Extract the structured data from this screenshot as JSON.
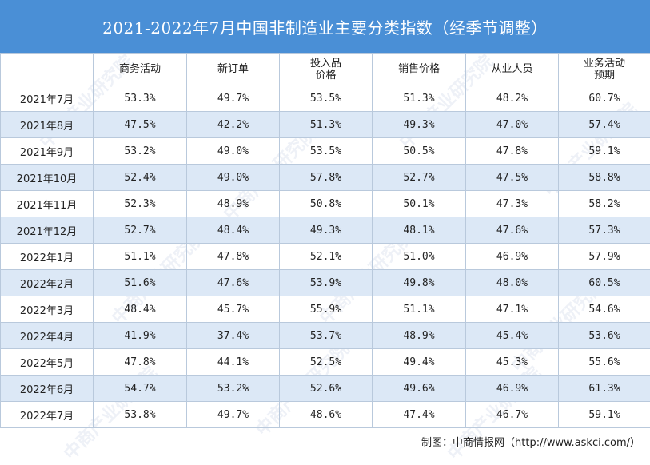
{
  "title": "2021-2022年7月中国非制造业主要分类指数（经季节调整）",
  "columns": [
    "",
    "商务活动",
    "新订单",
    "投入品\n价格",
    "销售价格",
    "从业人员",
    "业务活动\n预期"
  ],
  "rows": [
    [
      "2021年7月",
      "53.3%",
      "49.7%",
      "53.5%",
      "51.3%",
      "48.2%",
      "60.7%"
    ],
    [
      "2021年8月",
      "47.5%",
      "42.2%",
      "51.3%",
      "49.3%",
      "47.0%",
      "57.4%"
    ],
    [
      "2021年9月",
      "53.2%",
      "49.0%",
      "53.5%",
      "50.5%",
      "47.8%",
      "59.1%"
    ],
    [
      "2021年10月",
      "52.4%",
      "49.0%",
      "57.8%",
      "52.7%",
      "47.5%",
      "58.8%"
    ],
    [
      "2021年11月",
      "52.3%",
      "48.9%",
      "50.8%",
      "50.1%",
      "47.3%",
      "58.2%"
    ],
    [
      "2021年12月",
      "52.7%",
      "48.4%",
      "49.3%",
      "48.1%",
      "47.6%",
      "57.3%"
    ],
    [
      "2022年1月",
      "51.1%",
      "47.8%",
      "52.1%",
      "51.0%",
      "46.9%",
      "57.9%"
    ],
    [
      "2022年2月",
      "51.6%",
      "47.6%",
      "53.9%",
      "49.8%",
      "48.0%",
      "60.5%"
    ],
    [
      "2022年3月",
      "48.4%",
      "45.7%",
      "55.9%",
      "51.1%",
      "47.1%",
      "54.6%"
    ],
    [
      "2022年4月",
      "41.9%",
      "37.4%",
      "53.7%",
      "48.9%",
      "45.4%",
      "53.6%"
    ],
    [
      "2022年5月",
      "47.8%",
      "44.1%",
      "52.5%",
      "49.4%",
      "45.3%",
      "55.6%"
    ],
    [
      "2022年6月",
      "54.7%",
      "53.2%",
      "52.6%",
      "49.6%",
      "46.9%",
      "61.3%"
    ],
    [
      "2022年7月",
      "53.8%",
      "49.7%",
      "48.6%",
      "47.4%",
      "46.7%",
      "59.1%"
    ]
  ],
  "source": "制图：中商情报网（http://www.askci.com/）",
  "watermark": "中商产业研究院",
  "colors": {
    "title_bg": "#4a8fd6",
    "row_alt_bg": "#dce8f6",
    "grid": "#b9c9dc"
  }
}
